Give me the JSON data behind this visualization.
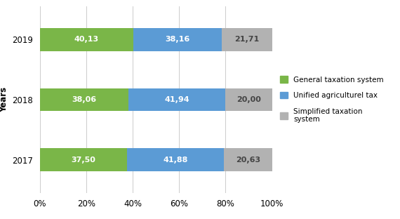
{
  "years": [
    "2017",
    "2018",
    "2019"
  ],
  "general_taxation": [
    37.5,
    38.06,
    40.13
  ],
  "unified_agricultural": [
    41.88,
    41.94,
    38.16
  ],
  "simplified_taxation": [
    20.63,
    20.0,
    21.71
  ],
  "labels_general": [
    "37,50",
    "38,06",
    "40,13"
  ],
  "labels_unified": [
    "41,88",
    "41,94",
    "38,16"
  ],
  "labels_simplified": [
    "20,63",
    "20,00",
    "21,71"
  ],
  "color_general": "#7ab648",
  "color_unified": "#5b9bd5",
  "color_simplified": "#b2b2b2",
  "ylabel": "Years",
  "legend_general": "General taxation system",
  "legend_unified": "Unified agriculturel tax",
  "legend_simplified": "Simplified taxation\nsystem",
  "bar_height": 0.38,
  "font_size": 8.5,
  "label_font_size": 8
}
